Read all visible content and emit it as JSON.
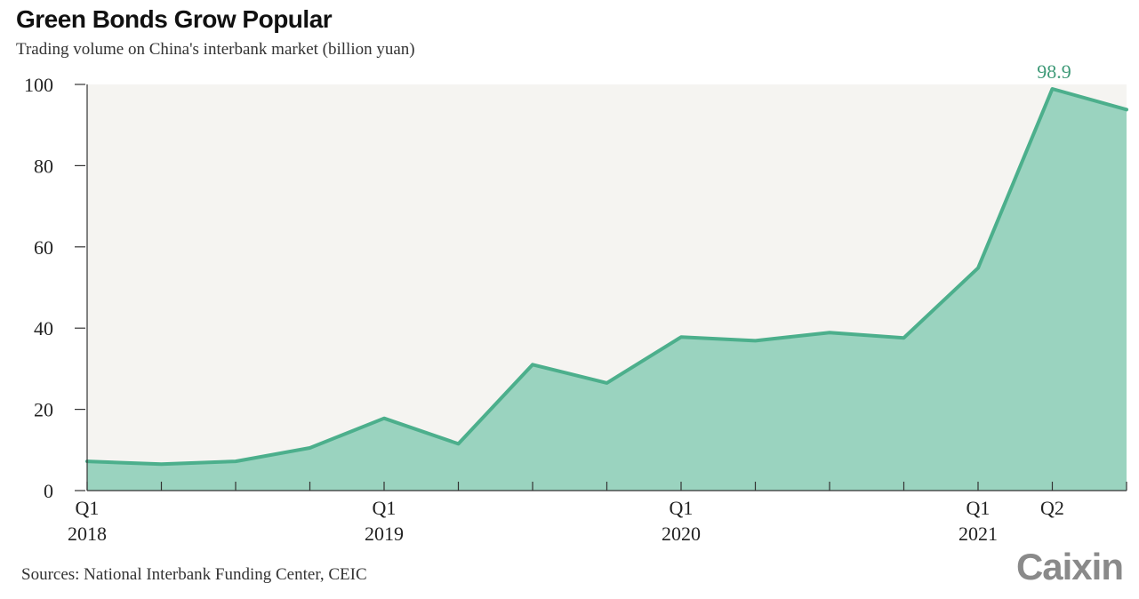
{
  "title": "Green Bonds Grow Popular",
  "subtitle": "Trading volume on China's interbank market (billion yuan)",
  "source": "Sources: National Interbank Funding Center, CEIC",
  "logo": "Caixin",
  "colors": {
    "line": "#4caf8c",
    "fill": "#9ad3bf",
    "plot_bg": "#f5f4f1",
    "axis": "#333333",
    "annotation": "#3f9a78"
  },
  "chart_data": {
    "type": "area",
    "title": "Green Bonds Grow Popular",
    "subtitle": "Trading volume on China's interbank market (billion yuan)",
    "x": [
      "2018-01",
      "2018-02",
      "2018-03",
      "2018-04",
      "2018-05",
      "2018-06",
      "2018-07",
      "2018-08",
      "2018-09",
      "2018-10",
      "2018-11",
      "2018-12",
      "2019-01",
      "2019-02",
      "2019-03",
      "2019-04",
      "2019-05",
      "2019-06",
      "2019-07",
      "2019-08",
      "2019-09",
      "2019-10",
      "2019-11",
      "2019-12",
      "2020-01",
      "2020-02",
      "2020-03",
      "2020-04",
      "2020-05",
      "2020-06",
      "2020-07",
      "2020-08",
      "2020-09",
      "2020-10",
      "2020-11",
      "2020-12",
      "2021-01",
      "2021-02",
      "2021-03",
      "2021-04",
      "2021-05",
      "2021-06",
      "2021-07"
    ],
    "points": [
      {
        "x": "2018-01",
        "y": 7.2
      },
      {
        "x": "2018-04",
        "y": 6.5
      },
      {
        "x": "2018-07",
        "y": 7.2
      },
      {
        "x": "2018-10",
        "y": 10.5
      },
      {
        "x": "2019-01",
        "y": 17.8
      },
      {
        "x": "2019-04",
        "y": 11.5
      },
      {
        "x": "2019-07",
        "y": 31.0
      },
      {
        "x": "2019-10",
        "y": 26.5
      },
      {
        "x": "2020-01",
        "y": 37.8
      },
      {
        "x": "2020-04",
        "y": 36.9
      },
      {
        "x": "2020-07",
        "y": 38.9
      },
      {
        "x": "2020-10",
        "y": 37.6
      },
      {
        "x": "2021-01",
        "y": 54.8
      },
      {
        "x": "2021-04",
        "y": 98.9
      },
      {
        "x": "2021-07",
        "y": 93.8
      }
    ],
    "ylim": [
      0,
      100
    ],
    "y_ticks": [
      0,
      20,
      40,
      60,
      80,
      100
    ],
    "x_tick_marks": [
      "2018-01",
      "2018-04",
      "2018-07",
      "2018-10",
      "2019-01",
      "2019-04",
      "2019-07",
      "2019-10",
      "2020-01",
      "2020-04",
      "2020-07",
      "2020-10",
      "2021-01",
      "2021-04",
      "2021-07"
    ],
    "x_labels": [
      {
        "x": "2018-01",
        "lines": [
          "Q1",
          "2018"
        ]
      },
      {
        "x": "2019-01",
        "lines": [
          "Q1",
          "2019"
        ]
      },
      {
        "x": "2020-01",
        "lines": [
          "Q1",
          "2020"
        ]
      },
      {
        "x": "2021-01",
        "lines": [
          "Q1",
          "2021"
        ]
      },
      {
        "x": "2021-04",
        "lines": [
          "Q2"
        ]
      }
    ],
    "annotations": [
      {
        "x": "2021-04",
        "y": 98.9,
        "text": "98.9"
      }
    ],
    "grid": false
  }
}
